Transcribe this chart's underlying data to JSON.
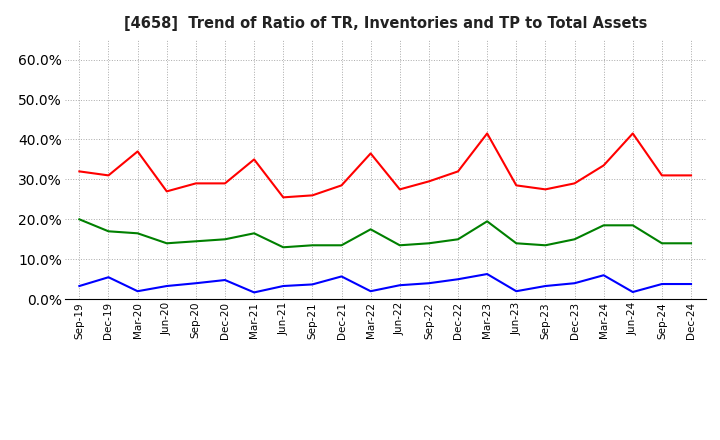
{
  "title": "[4658]  Trend of Ratio of TR, Inventories and TP to Total Assets",
  "x_labels": [
    "Sep-19",
    "Dec-19",
    "Mar-20",
    "Jun-20",
    "Sep-20",
    "Dec-20",
    "Mar-21",
    "Jun-21",
    "Sep-21",
    "Dec-21",
    "Mar-22",
    "Jun-22",
    "Sep-22",
    "Dec-22",
    "Mar-23",
    "Jun-23",
    "Sep-23",
    "Dec-23",
    "Mar-24",
    "Jun-24",
    "Sep-24",
    "Dec-24"
  ],
  "trade_receivables": [
    0.32,
    0.31,
    0.37,
    0.27,
    0.29,
    0.29,
    0.35,
    0.255,
    0.26,
    0.285,
    0.365,
    0.275,
    0.295,
    0.32,
    0.415,
    0.285,
    0.275,
    0.29,
    0.335,
    0.415,
    0.31,
    0.31
  ],
  "inventories": [
    0.033,
    0.055,
    0.02,
    0.033,
    0.04,
    0.048,
    0.017,
    0.033,
    0.037,
    0.057,
    0.02,
    0.035,
    0.04,
    0.05,
    0.063,
    0.02,
    0.033,
    0.04,
    0.06,
    0.018,
    0.038,
    0.038
  ],
  "trade_payables": [
    0.2,
    0.17,
    0.165,
    0.14,
    0.145,
    0.15,
    0.165,
    0.13,
    0.135,
    0.135,
    0.175,
    0.135,
    0.14,
    0.15,
    0.195,
    0.14,
    0.135,
    0.15,
    0.185,
    0.185,
    0.14,
    0.14
  ],
  "colors": {
    "trade_receivables": "#ff0000",
    "inventories": "#0000ff",
    "trade_payables": "#008000"
  },
  "ylim": [
    0.0,
    0.65
  ],
  "yticks": [
    0.0,
    0.1,
    0.2,
    0.3,
    0.4,
    0.5,
    0.6
  ],
  "background_color": "#ffffff",
  "grid_color": "#aaaaaa"
}
